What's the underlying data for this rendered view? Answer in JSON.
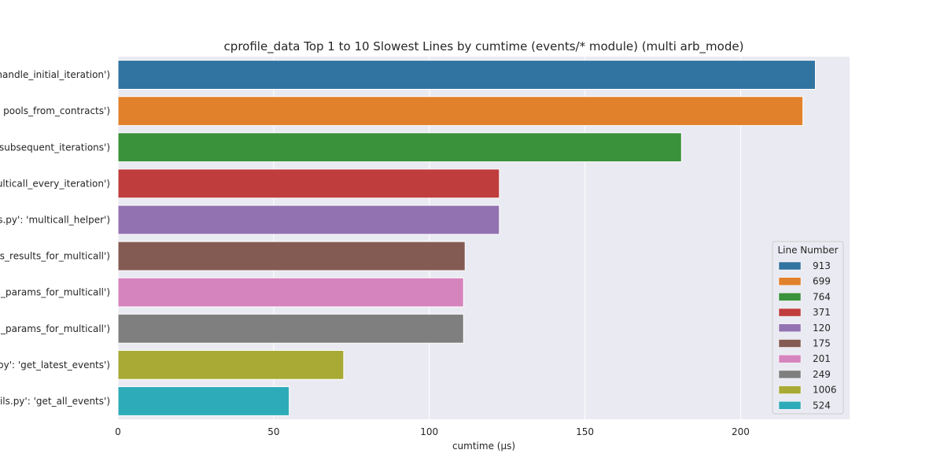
{
  "chart_data": {
    "type": "bar",
    "orientation": "horizontal",
    "title": "cprofile_data Top 1 to 10 Slowest Lines by cumtime (events/* module) (multi arb_mode)",
    "xlabel": "cumtime (µs)",
    "ylabel": "",
    "xlim": [
      0,
      235
    ],
    "xticks": [
      0,
      50,
      100,
      150,
      200
    ],
    "grid": true,
    "legend": {
      "title": "Line Number",
      "placement": "lower-right"
    },
    "categories": [
      "handle_initial_iteration')",
      "pools_from_contracts')",
      "subsequent_iterations')",
      "ulticall_every_iteration')",
      "s.py': 'multicall_helper')",
      "s_results_for_multicall')",
      "_params_for_multicall')",
      "_params_for_multicall')",
      "py': 'get_latest_events')",
      "ils.py': 'get_all_events')"
    ],
    "values": [
      224,
      220,
      181,
      122.5,
      122.5,
      111.5,
      111,
      111,
      72.5,
      55
    ],
    "line_numbers": [
      "913",
      "699",
      "764",
      "371",
      "120",
      "175",
      "201",
      "249",
      "1006",
      "524"
    ],
    "colors": [
      "#3274a1",
      "#e1812c",
      "#3a923a",
      "#c03d3e",
      "#9372b2",
      "#845b53",
      "#d684bd",
      "#7f7f7f",
      "#a9aa35",
      "#2eabb8"
    ]
  }
}
